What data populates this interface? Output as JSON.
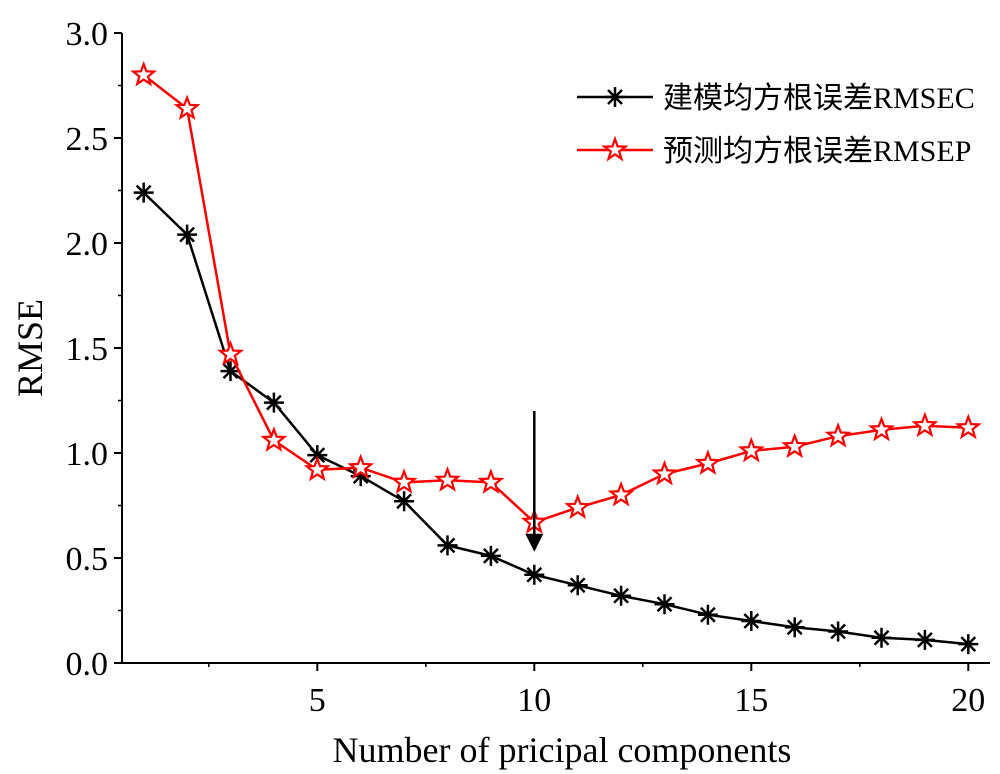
{
  "chart_data": {
    "type": "line",
    "title": "",
    "xlabel": "Number of pricipal components",
    "ylabel": "RMSE",
    "x": [
      1,
      2,
      3,
      4,
      5,
      6,
      7,
      8,
      9,
      10,
      11,
      12,
      13,
      14,
      15,
      16,
      17,
      18,
      19,
      20
    ],
    "xlim": [
      0.5,
      20.5
    ],
    "ylim": [
      0,
      3.0
    ],
    "xticks": [
      "5",
      "10",
      "15",
      "20"
    ],
    "yticks": [
      "0.0",
      "0.5",
      "1.0",
      "1.5",
      "2.0",
      "2.5",
      "3.0"
    ],
    "grid": false,
    "legend_position": "top-right",
    "series": [
      {
        "name": "建模均方根误差RMSEC",
        "color": "#000000",
        "marker": "asterisk",
        "values": [
          2.24,
          2.04,
          1.39,
          1.24,
          0.99,
          0.89,
          0.77,
          0.56,
          0.51,
          0.42,
          0.37,
          0.32,
          0.28,
          0.23,
          0.2,
          0.17,
          0.15,
          0.12,
          0.11,
          0.09
        ]
      },
      {
        "name": "预测均方根误差RMSEP",
        "color": "#ff0000",
        "marker": "star",
        "values": [
          2.8,
          2.64,
          1.47,
          1.06,
          0.92,
          0.93,
          0.86,
          0.87,
          0.86,
          0.67,
          0.74,
          0.8,
          0.9,
          0.95,
          1.01,
          1.03,
          1.08,
          1.11,
          1.13,
          1.12
        ]
      }
    ],
    "annotations": [
      {
        "type": "arrow",
        "x": 10,
        "y_from": 1.2,
        "y_to": 0.53,
        "color": "#000000"
      }
    ]
  }
}
